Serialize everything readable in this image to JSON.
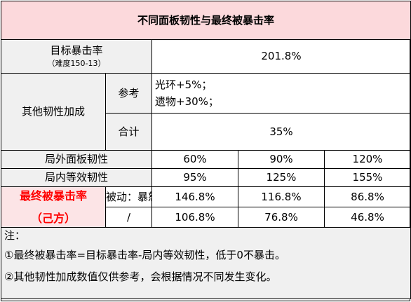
{
  "title": "不同面板韧性与最终被暴击率",
  "target_crit": {
    "label": "目标暴击率",
    "sublabel": "（难度150-13）",
    "value": "201.8%"
  },
  "other_toughness": {
    "label": "其他韧性加成",
    "reference_label": "参考",
    "reference_lines": [
      "光环+5%；",
      "遗物+30%；"
    ],
    "total_label": "合计",
    "total_value": "35%"
  },
  "outer_panel": {
    "label": "局外面板韧性",
    "values": [
      "60%",
      "90%",
      "120%"
    ]
  },
  "inner_equiv": {
    "label": "局内等效韧性",
    "values": [
      "95%",
      "125%",
      "155%"
    ]
  },
  "final_crit": {
    "label_line1": "最终被暴击率",
    "label_line2": "（己方）",
    "rows": [
      {
        "condition": "被动：暴怒",
        "values": [
          "146.8%",
          "116.8%",
          "86.8%"
        ]
      },
      {
        "condition": "/",
        "values": [
          "106.8%",
          "76.8%",
          "46.8%"
        ]
      }
    ]
  },
  "notes": {
    "heading": "注：",
    "items": [
      "①最终被暴击率=目标暴击率-局内等效韧性，低于0不暴击。",
      "②其他韧性加成数值仅供参考，会根据情况不同发生变化。"
    ]
  },
  "colors": {
    "title_bg": "#fcd9dc",
    "label_bg": "#f0f0f0",
    "highlight_bg": "#fce4e6",
    "accent_text": "#ff0000"
  }
}
